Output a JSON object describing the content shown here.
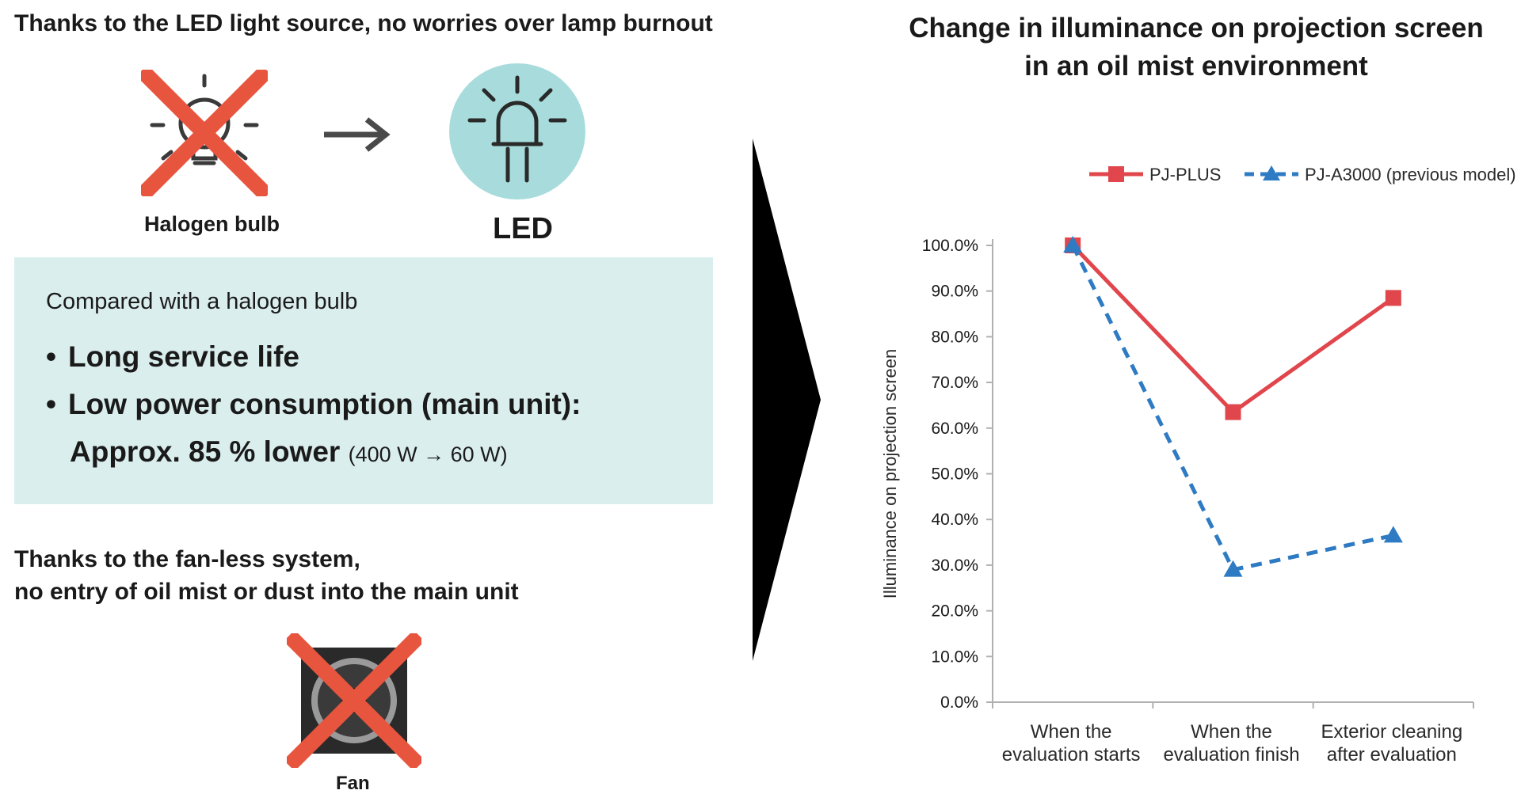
{
  "left": {
    "led_heading": "Thanks to the LED light source, no worries over lamp burnout",
    "halogen_label": "Halogen bulb",
    "led_label": "LED",
    "compare_title": "Compared with a halogen bulb",
    "bullet_1": "Long service life",
    "bullet_2": "Low power consumption (main unit):",
    "bullet_2_cont": "Approx. 85 % lower",
    "bullet_2_note": "(400 W → 60 W)",
    "fan_heading_line1": "Thanks to the fan-less system,",
    "fan_heading_line2": "no entry of oil mist or dust into the main unit",
    "fan_label": "Fan"
  },
  "colors": {
    "cross": "#e8553e",
    "led_circle": "#a8dcdc",
    "panel": "#dbeeee",
    "pj_plus": "#e0464b",
    "pj_a3000": "#2e7bc4"
  },
  "icons": [
    "halogen-bulb-icon",
    "arrow-right-icon",
    "led-icon",
    "fan-icon",
    "cross-icon"
  ],
  "chart_data": {
    "type": "line",
    "title_line1": "Change in illuminance on projection screen",
    "title_line2": "in an oil mist environment",
    "ylabel": "Illuminance on projection screen",
    "xlabel": "",
    "categories": [
      [
        "When the",
        "evaluation starts"
      ],
      [
        "When the",
        "evaluation finish"
      ],
      [
        "Exterior cleaning",
        "after evaluation"
      ]
    ],
    "series": [
      {
        "name": "PJ-PLUS",
        "values": [
          100.0,
          63.5,
          88.5
        ],
        "marker": "square",
        "dash": false
      },
      {
        "name": "PJ-A3000 (previous model)",
        "values": [
          100.0,
          29.0,
          36.5
        ],
        "marker": "triangle",
        "dash": true
      }
    ],
    "yticks": [
      "0.0%",
      "10.0%",
      "20.0%",
      "30.0%",
      "40.0%",
      "50.0%",
      "60.0%",
      "70.0%",
      "80.0%",
      "90.0%",
      "100.0%"
    ],
    "ylim": [
      0,
      100
    ],
    "grid": false,
    "legend_position": "top-right"
  }
}
